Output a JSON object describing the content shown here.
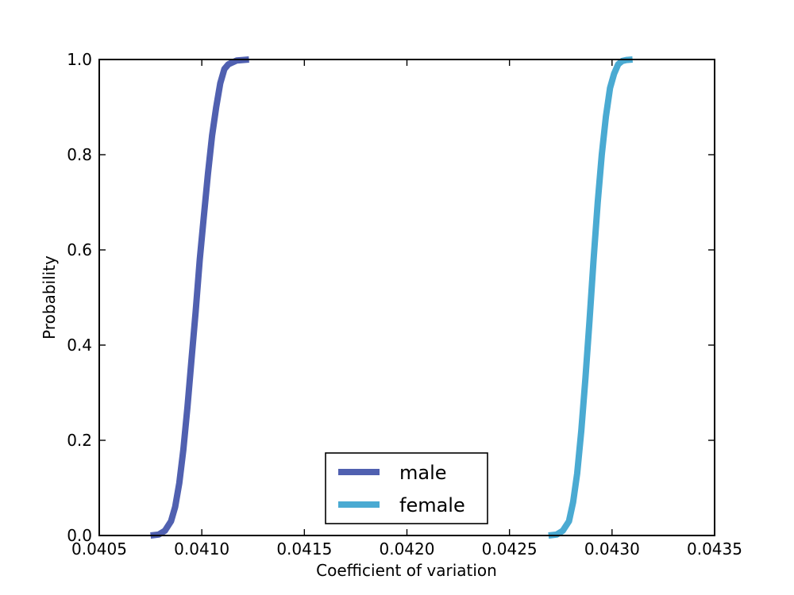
{
  "chart_data": {
    "type": "line",
    "title": "",
    "xlabel": "Coefficient of variation",
    "ylabel": "Probability",
    "xlim": [
      0.0405,
      0.0435
    ],
    "ylim": [
      0.0,
      1.0
    ],
    "x_ticks": [
      "0.0405",
      "0.0410",
      "0.0415",
      "0.0420",
      "0.0425",
      "0.0430",
      "0.0435"
    ],
    "y_ticks": [
      "0.0",
      "0.2",
      "0.4",
      "0.6",
      "0.8",
      "1.0"
    ],
    "grid": false,
    "legend_position": "lower center",
    "series": [
      {
        "name": "male",
        "color": "#5060b0",
        "x": [
          0.04075,
          0.04079,
          0.04082,
          0.04085,
          0.04087,
          0.04089,
          0.04091,
          0.04093,
          0.04095,
          0.04097,
          0.04099,
          0.04101,
          0.04103,
          0.04105,
          0.04107,
          0.04109,
          0.04111,
          0.04113,
          0.04117,
          0.04123
        ],
        "y": [
          0.0,
          0.002,
          0.01,
          0.03,
          0.06,
          0.11,
          0.18,
          0.27,
          0.37,
          0.47,
          0.58,
          0.67,
          0.76,
          0.84,
          0.9,
          0.95,
          0.98,
          0.99,
          0.998,
          1.0
        ]
      },
      {
        "name": "female",
        "color": "#4aaad2",
        "x": [
          0.04269,
          0.04273,
          0.04276,
          0.04279,
          0.04281,
          0.04283,
          0.04285,
          0.04287,
          0.04289,
          0.04291,
          0.04293,
          0.04295,
          0.04297,
          0.04299,
          0.04301,
          0.04303,
          0.04305,
          0.04307,
          0.0431
        ],
        "y": [
          0.0,
          0.002,
          0.01,
          0.03,
          0.07,
          0.13,
          0.22,
          0.33,
          0.45,
          0.58,
          0.7,
          0.8,
          0.88,
          0.94,
          0.97,
          0.99,
          0.997,
          0.999,
          1.0
        ]
      }
    ]
  }
}
